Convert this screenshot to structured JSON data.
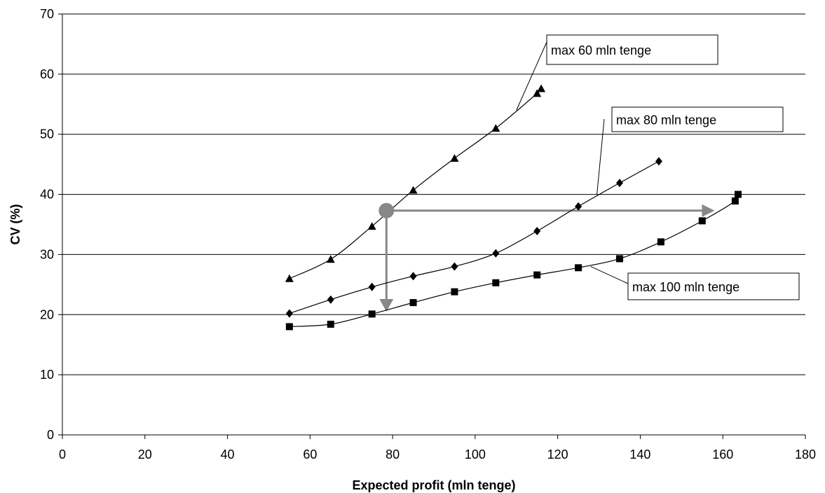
{
  "chart_data": {
    "type": "line",
    "xlabel": "Expected profit (mln tenge)",
    "ylabel": "CV (%)",
    "xlim": [
      0,
      180
    ],
    "ylim": [
      0,
      70
    ],
    "xticks": [
      0,
      20,
      40,
      60,
      80,
      100,
      120,
      140,
      160,
      180
    ],
    "yticks": [
      0,
      10,
      20,
      30,
      40,
      50,
      60,
      70
    ],
    "grid": "horizontal",
    "series": [
      {
        "name": "max 60 mln tenge",
        "marker": "triangle",
        "x": [
          55,
          65,
          75,
          85,
          95,
          105,
          115,
          116
        ],
        "y": [
          26,
          29.2,
          34.7,
          40.7,
          46,
          51,
          56.8,
          57.6
        ]
      },
      {
        "name": "max 80 mln tenge",
        "marker": "diamond",
        "x": [
          55,
          65,
          75,
          85,
          95,
          105,
          115,
          125,
          135,
          144.5
        ],
        "y": [
          20.2,
          22.5,
          24.6,
          26.4,
          28,
          30.2,
          33.9,
          38,
          41.9,
          45.5
        ]
      },
      {
        "name": "max 100 mln tenge",
        "marker": "square",
        "x": [
          55,
          65,
          75,
          85,
          95,
          105,
          115,
          125,
          135,
          145,
          155,
          163,
          163.7
        ],
        "y": [
          18,
          18.4,
          20.1,
          22,
          23.8,
          25.3,
          26.6,
          27.8,
          29.3,
          32.1,
          35.6,
          38.9,
          40
        ]
      }
    ],
    "annotations": {
      "point": {
        "x": 78.5,
        "y": 37.3
      },
      "arrow_right_to": {
        "x": 158,
        "y": 37.3
      },
      "arrow_down_to": {
        "x": 78.5,
        "y": 20.5
      },
      "color": "#888888"
    },
    "callouts": [
      {
        "text": "max 60 mln tenge",
        "target": {
          "x": 110,
          "y": 54
        }
      },
      {
        "text": "max 80 mln tenge",
        "target": {
          "x": 129.5,
          "y": 40
        }
      },
      {
        "text": "max 100 mln tenge",
        "target": {
          "x": 128,
          "y": 28
        }
      }
    ]
  }
}
